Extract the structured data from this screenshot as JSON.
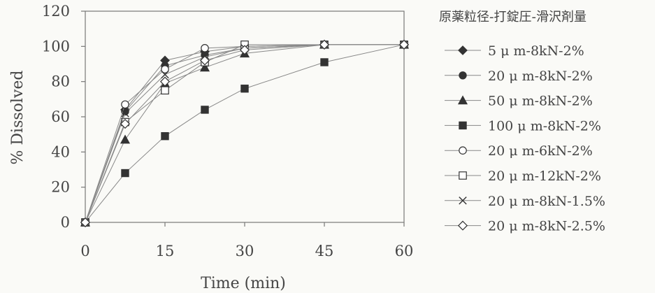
{
  "chart_data": {
    "type": "line",
    "title": "",
    "xlabel": "Time (min)",
    "ylabel": "% Dissolved",
    "xlim": [
      0,
      60
    ],
    "ylim": [
      0,
      120
    ],
    "x_ticks": [
      "0",
      "15",
      "30",
      "45",
      "60"
    ],
    "y_ticks": [
      "0",
      "20",
      "40",
      "60",
      "80",
      "100",
      "120"
    ],
    "grid": false,
    "legend_title": "原薬粒径-打錠圧-滑沢剤量",
    "legend_position": "right",
    "x": [
      0,
      7.5,
      15,
      22.5,
      30,
      45,
      60
    ],
    "series": [
      {
        "name": "5 μ m-8kN-2%",
        "marker": "diamond-filled",
        "values": [
          0,
          64,
          92,
          97,
          100,
          101,
          101
        ]
      },
      {
        "name": "20 μ m-8kN-2%",
        "marker": "circle-filled",
        "values": [
          0,
          63,
          89,
          95,
          99,
          101,
          101
        ]
      },
      {
        "name": "50 μ m-8kN-2%",
        "marker": "triangle-filled",
        "values": [
          0,
          47,
          79,
          88,
          96,
          101,
          101
        ]
      },
      {
        "name": "100 μ m-8kN-2%",
        "marker": "square-filled",
        "values": [
          0,
          28,
          49,
          64,
          76,
          91,
          101
        ]
      },
      {
        "name": "20 μ m-6kN-2%",
        "marker": "circle-open",
        "values": [
          0,
          67,
          87,
          99,
          100,
          101,
          101
        ]
      },
      {
        "name": "20 μ m-12kN-2%",
        "marker": "square-open",
        "values": [
          0,
          57,
          75,
          91,
          101,
          101,
          101
        ]
      },
      {
        "name": "20 μ m-8kN-1.5%",
        "marker": "cross",
        "values": [
          0,
          62,
          84,
          94,
          99,
          101,
          101
        ]
      },
      {
        "name": "20 μ m-8kN-2.5%",
        "marker": "diamond-open",
        "values": [
          0,
          56,
          80,
          92,
          98,
          101,
          101
        ]
      }
    ]
  }
}
